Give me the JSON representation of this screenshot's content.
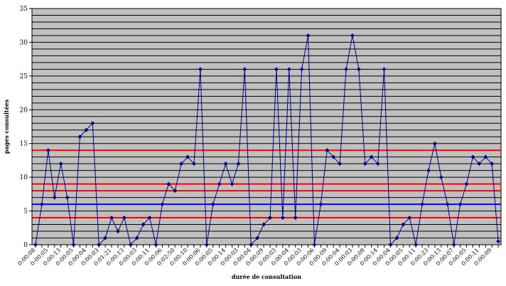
{
  "chart_data": {
    "type": "line",
    "title": "",
    "xlabel": "durée de consultation",
    "ylabel": "pages consultées",
    "ylim": [
      0,
      35
    ],
    "ytick_step": 5,
    "grid": true,
    "gridlines_per_unit": 1,
    "legend": "none",
    "colors": {
      "plot_bg": "#c0c0c0",
      "grid": "#000000",
      "series": "#000080",
      "ref_red": "#ff0000",
      "ref_blue": "#0000ff"
    },
    "reference_lines": [
      {
        "value": 14,
        "color": "#ff0000"
      },
      {
        "value": 9,
        "color": "#ff0000"
      },
      {
        "value": 8,
        "color": "#ff0000"
      },
      {
        "value": 6,
        "color": "#0000ff"
      },
      {
        "value": 4,
        "color": "#ff0000"
      }
    ],
    "x_tick_labels": [
      "0:00:08",
      "0:00:05",
      "0:00:13",
      "0:00:05",
      "0:00:04",
      "0:00:03",
      "0:01:21",
      "0:00:13",
      "0:00:03",
      "0:00:11",
      "0:00:06",
      "0:02:50",
      "0:00:10",
      "0:00:06",
      "0:00:05",
      "0:00:14",
      "0:00:03",
      "0:00:04",
      "0:00:09",
      "0:00:03",
      "0:00:04",
      "0:00:03",
      "0:00:06",
      "0:00:09",
      "0:00:04",
      "0:00:03",
      "0:00:09",
      "0:00:14",
      "0:00:04",
      "0:00:05",
      "0:00:11",
      "0:00:23",
      "0:00:13",
      "0:00:07",
      "0:00:05",
      "0:00:11",
      "0:00:09"
    ],
    "series": [
      {
        "values": [
          0,
          6,
          14,
          7,
          12,
          7,
          0,
          16,
          17,
          18,
          0,
          1,
          4,
          2,
          4,
          0,
          1,
          3,
          4,
          0,
          6,
          9,
          8,
          12,
          13,
          12,
          26,
          0,
          6,
          9,
          12,
          9,
          12,
          26,
          0,
          1,
          3,
          4,
          26,
          4,
          26,
          4,
          26,
          31,
          0,
          6,
          14,
          13,
          12,
          26,
          31,
          26,
          12,
          13,
          12,
          26,
          0,
          1,
          3,
          4,
          0,
          6,
          11,
          15,
          10,
          6,
          0,
          6,
          9,
          13,
          12,
          13,
          12,
          0.5
        ]
      }
    ]
  }
}
